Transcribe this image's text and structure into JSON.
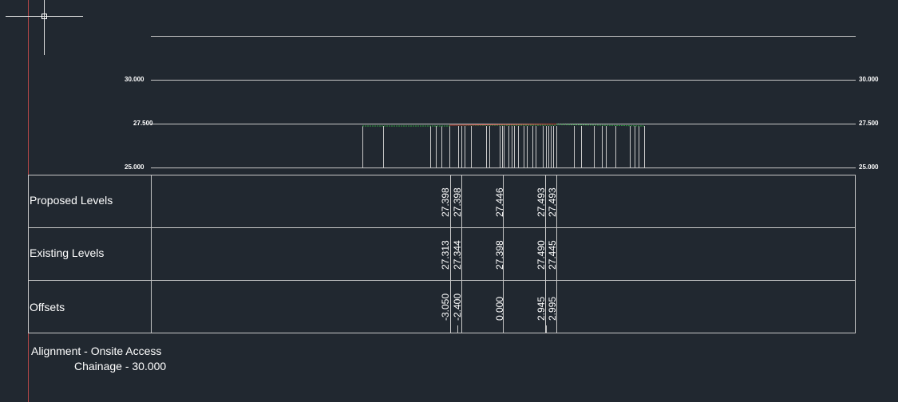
{
  "axis_labels": {
    "left": [
      "30.000",
      "27.500",
      "25.000"
    ],
    "right": [
      "30.000",
      "27.500",
      "25.000"
    ]
  },
  "table": {
    "rows": [
      {
        "label": "Proposed Levels",
        "values": [
          "27.398",
          "27.398",
          "27.446",
          "27.493",
          "27.493"
        ]
      },
      {
        "label": "Existing Levels",
        "values": [
          "27.313",
          "27.344",
          "27.398",
          "27.490",
          "27.445"
        ]
      },
      {
        "label": "Offsets",
        "values": [
          "-3.050",
          "-2.400",
          "0.000",
          "2.945",
          "2.995"
        ]
      }
    ]
  },
  "footer": {
    "alignment": "Alignment - Onsite Access",
    "chainage": "Chainage - 30.000"
  },
  "colors": {
    "background": "#212830",
    "lines": "#c8c8c8",
    "proposed": "#c0392b",
    "existing": "#2e9e3e",
    "ucs_axis": "#c04040"
  }
}
